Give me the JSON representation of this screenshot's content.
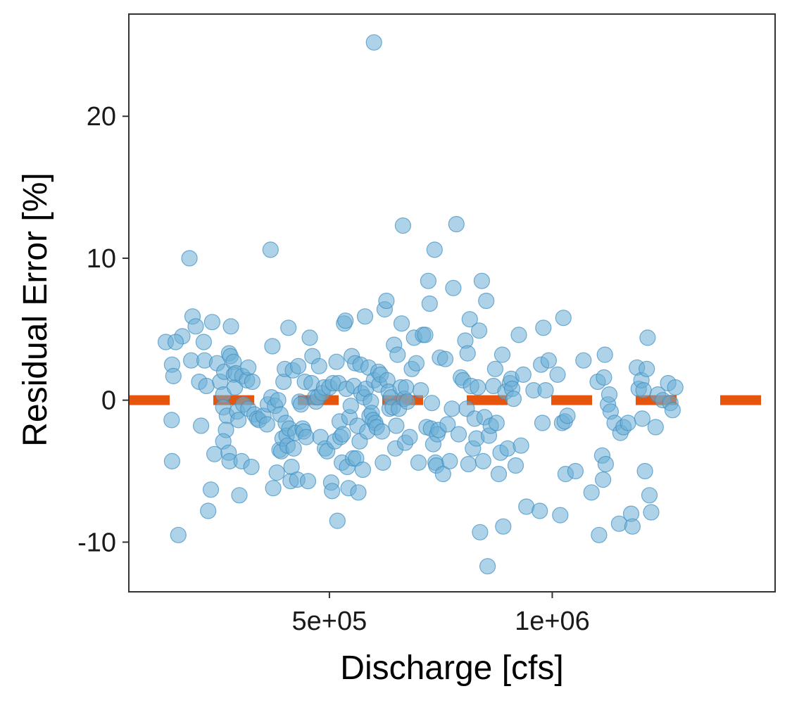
{
  "chart_data": {
    "type": "scatter",
    "xlabel": "Discharge [cfs]",
    "ylabel": "Residual Error [%]",
    "xlim": [
      50000,
      1500000
    ],
    "ylim": [
      -13.5,
      27.2
    ],
    "grid": false,
    "legend": "none",
    "x_ticks": [
      {
        "value": 500000,
        "label": "5e+05"
      },
      {
        "value": 1000000,
        "label": "1e+06"
      }
    ],
    "y_ticks": [
      {
        "value": -10,
        "label": "-10"
      },
      {
        "value": 0,
        "label": "0"
      },
      {
        "value": 10,
        "label": "10"
      },
      {
        "value": 20,
        "label": "20"
      }
    ],
    "reference_line": {
      "y": 0,
      "style": "dashed",
      "color": "#e6550d"
    },
    "point_color": "#6baed6",
    "points": [
      [
        600000,
        25.2
      ],
      [
        133000,
        4.1
      ],
      [
        147000,
        2.5
      ],
      [
        150000,
        1.7
      ],
      [
        146000,
        -1.4
      ],
      [
        147000,
        -4.3
      ],
      [
        170000,
        4.5
      ],
      [
        161000,
        -9.5
      ],
      [
        155000,
        4.1
      ],
      [
        186000,
        10.0
      ],
      [
        190000,
        2.8
      ],
      [
        193000,
        5.9
      ],
      [
        200000,
        5.2
      ],
      [
        208000,
        1.3
      ],
      [
        212000,
        -1.8
      ],
      [
        218000,
        4.1
      ],
      [
        220000,
        2.8
      ],
      [
        224000,
        1.0
      ],
      [
        234000,
        -6.3
      ],
      [
        228000,
        -7.8
      ],
      [
        237000,
        5.5
      ],
      [
        242000,
        -3.8
      ],
      [
        248000,
        2.6
      ],
      [
        255000,
        1.3
      ],
      [
        264000,
        2.0
      ],
      [
        262000,
        0.4
      ],
      [
        262000,
        -0.5
      ],
      [
        270000,
        -1.1
      ],
      [
        268000,
        -2.1
      ],
      [
        262000,
        -2.9
      ],
      [
        274000,
        -3.7
      ],
      [
        276000,
        -4.3
      ],
      [
        275000,
        3.3
      ],
      [
        278000,
        3.1
      ],
      [
        279000,
        5.2
      ],
      [
        285000,
        2.7
      ],
      [
        286000,
        1.8
      ],
      [
        288000,
        0.9
      ],
      [
        290000,
        1.9
      ],
      [
        293000,
        -0.8
      ],
      [
        296000,
        -1.4
      ],
      [
        298000,
        -6.7
      ],
      [
        303000,
        -4.3
      ],
      [
        305000,
        1.7
      ],
      [
        307000,
        -0.3
      ],
      [
        315000,
        1.4
      ],
      [
        318000,
        2.3
      ],
      [
        318000,
        -0.6
      ],
      [
        325000,
        -4.7
      ],
      [
        327000,
        1.3
      ],
      [
        332000,
        -1.0
      ],
      [
        338000,
        -1.3
      ],
      [
        342000,
        -1.4
      ],
      [
        352000,
        -1.1
      ],
      [
        360000,
        -1.7
      ],
      [
        362000,
        -0.3
      ],
      [
        368000,
        10.6
      ],
      [
        370000,
        0.2
      ],
      [
        372000,
        3.8
      ],
      [
        374000,
        -6.2
      ],
      [
        378000,
        -0.4
      ],
      [
        382000,
        -5.1
      ],
      [
        385000,
        0.0
      ],
      [
        388000,
        -3.5
      ],
      [
        390000,
        -1.0
      ],
      [
        392000,
        -3.6
      ],
      [
        395000,
        -2.7
      ],
      [
        397000,
        1.3
      ],
      [
        400000,
        2.2
      ],
      [
        402000,
        -1.6
      ],
      [
        404000,
        -2.5
      ],
      [
        406000,
        -3.2
      ],
      [
        408000,
        5.1
      ],
      [
        410000,
        -2.0
      ],
      [
        413000,
        -5.7
      ],
      [
        415000,
        -4.7
      ],
      [
        418000,
        2.1
      ],
      [
        420000,
        -3.4
      ],
      [
        424000,
        -2.3
      ],
      [
        428000,
        -5.6
      ],
      [
        430000,
        2.4
      ],
      [
        433000,
        -0.1
      ],
      [
        436000,
        -0.3
      ],
      [
        440000,
        -2.0
      ],
      [
        442000,
        -2.2
      ],
      [
        445000,
        1.3
      ],
      [
        448000,
        -2.6
      ],
      [
        452000,
        -5.7
      ],
      [
        456000,
        4.4
      ],
      [
        460000,
        1.2
      ],
      [
        462000,
        3.1
      ],
      [
        468000,
        0.2
      ],
      [
        470000,
        -0.1
      ],
      [
        474000,
        0.2
      ],
      [
        477000,
        2.4
      ],
      [
        480000,
        -2.6
      ],
      [
        484000,
        0.5
      ],
      [
        488000,
        0.9
      ],
      [
        490000,
        -3.4
      ],
      [
        495000,
        -3.6
      ],
      [
        500000,
        0.9
      ],
      [
        504000,
        -5.8
      ],
      [
        506000,
        -6.4
      ],
      [
        508000,
        1.2
      ],
      [
        512000,
        -2.9
      ],
      [
        516000,
        2.7
      ],
      [
        518000,
        -8.5
      ],
      [
        520000,
        1.2
      ],
      [
        523000,
        -1.5
      ],
      [
        525000,
        -2.6
      ],
      [
        528000,
        -4.4
      ],
      [
        530000,
        -2.4
      ],
      [
        533000,
        5.4
      ],
      [
        536000,
        5.6
      ],
      [
        538000,
        0.8
      ],
      [
        540000,
        -4.7
      ],
      [
        543000,
        -6.2
      ],
      [
        545000,
        -1.2
      ],
      [
        548000,
        -0.4
      ],
      [
        550000,
        3.1
      ],
      [
        553000,
        -4.1
      ],
      [
        555000,
        1.0
      ],
      [
        558000,
        2.6
      ],
      [
        560000,
        -4.1
      ],
      [
        563000,
        -1.8
      ],
      [
        565000,
        -6.5
      ],
      [
        568000,
        -2.9
      ],
      [
        570000,
        2.5
      ],
      [
        572000,
        0.5
      ],
      [
        575000,
        -4.9
      ],
      [
        578000,
        0.2
      ],
      [
        580000,
        5.9
      ],
      [
        582000,
        0.8
      ],
      [
        585000,
        -2.2
      ],
      [
        588000,
        2.3
      ],
      [
        590000,
        -1.1
      ],
      [
        593000,
        -0.1
      ],
      [
        595000,
        -0.9
      ],
      [
        598000,
        -1.4
      ],
      [
        600000,
        1.4
      ],
      [
        603000,
        -1.6
      ],
      [
        606000,
        -1.9
      ],
      [
        610000,
        2.0
      ],
      [
        612000,
        1.1
      ],
      [
        615000,
        1.8
      ],
      [
        618000,
        -2.2
      ],
      [
        620000,
        -4.4
      ],
      [
        624000,
        6.4
      ],
      [
        628000,
        7.0
      ],
      [
        630000,
        1.4
      ],
      [
        633000,
        0.6
      ],
      [
        635000,
        -0.6
      ],
      [
        638000,
        0.2
      ],
      [
        642000,
        -0.5
      ],
      [
        645000,
        3.9
      ],
      [
        648000,
        -3.4
      ],
      [
        650000,
        -1.8
      ],
      [
        653000,
        3.2
      ],
      [
        656000,
        -0.6
      ],
      [
        660000,
        0.9
      ],
      [
        662000,
        5.4
      ],
      [
        665000,
        12.3
      ],
      [
        668000,
        0.1
      ],
      [
        670000,
        -3.0
      ],
      [
        672000,
        0.9
      ],
      [
        675000,
        -0.1
      ],
      [
        680000,
        -2.6
      ],
      [
        685000,
        2.2
      ],
      [
        690000,
        4.4
      ],
      [
        695000,
        2.6
      ],
      [
        700000,
        -4.4
      ],
      [
        705000,
        0.7
      ],
      [
        710000,
        4.6
      ],
      [
        715000,
        4.6
      ],
      [
        718000,
        -1.9
      ],
      [
        722000,
        8.4
      ],
      [
        725000,
        6.8
      ],
      [
        728000,
        -2.0
      ],
      [
        730000,
        -0.2
      ],
      [
        733000,
        -3.1
      ],
      [
        736000,
        10.6
      ],
      [
        738000,
        -4.4
      ],
      [
        740000,
        -4.6
      ],
      [
        742000,
        -2.4
      ],
      [
        745000,
        -2.1
      ],
      [
        748000,
        3.0
      ],
      [
        755000,
        -5.2
      ],
      [
        760000,
        2.9
      ],
      [
        765000,
        -1.7
      ],
      [
        770000,
        -4.3
      ],
      [
        775000,
        -0.6
      ],
      [
        778000,
        7.9
      ],
      [
        785000,
        12.4
      ],
      [
        790000,
        -2.4
      ],
      [
        795000,
        1.6
      ],
      [
        800000,
        1.4
      ],
      [
        805000,
        4.2
      ],
      [
        808000,
        -0.6
      ],
      [
        810000,
        3.3
      ],
      [
        812000,
        -4.5
      ],
      [
        815000,
        5.7
      ],
      [
        818000,
        1.0
      ],
      [
        822000,
        -3.4
      ],
      [
        826000,
        -1.3
      ],
      [
        830000,
        -2.7
      ],
      [
        833000,
        0.9
      ],
      [
        836000,
        4.9
      ],
      [
        838000,
        -9.3
      ],
      [
        842000,
        8.4
      ],
      [
        845000,
        -4.3
      ],
      [
        848000,
        -1.2
      ],
      [
        852000,
        7.0
      ],
      [
        855000,
        -11.7
      ],
      [
        858000,
        -2.5
      ],
      [
        862000,
        -1.8
      ],
      [
        868000,
        1.0
      ],
      [
        872000,
        2.2
      ],
      [
        875000,
        -1.6
      ],
      [
        880000,
        -5.2
      ],
      [
        884000,
        -3.7
      ],
      [
        888000,
        3.2
      ],
      [
        890000,
        -8.9
      ],
      [
        895000,
        0.6
      ],
      [
        900000,
        -3.4
      ],
      [
        905000,
        1.2
      ],
      [
        908000,
        1.5
      ],
      [
        910000,
        0.8
      ],
      [
        913000,
        0.1
      ],
      [
        918000,
        -4.6
      ],
      [
        925000,
        4.6
      ],
      [
        930000,
        -3.2
      ],
      [
        935000,
        1.8
      ],
      [
        942000,
        -7.5
      ],
      [
        958000,
        0.7
      ],
      [
        972000,
        -7.8
      ],
      [
        975000,
        2.5
      ],
      [
        978000,
        -1.6
      ],
      [
        980000,
        5.1
      ],
      [
        985000,
        0.7
      ],
      [
        992000,
        2.8
      ],
      [
        1012000,
        1.8
      ],
      [
        1018000,
        -8.1
      ],
      [
        1022000,
        -1.6
      ],
      [
        1025000,
        5.8
      ],
      [
        1028000,
        -1.5
      ],
      [
        1030000,
        -5.2
      ],
      [
        1034000,
        -1.1
      ],
      [
        1052000,
        -5.0
      ],
      [
        1070000,
        2.8
      ],
      [
        1088000,
        -6.5
      ],
      [
        1102000,
        1.3
      ],
      [
        1105000,
        -9.5
      ],
      [
        1112000,
        -3.9
      ],
      [
        1114000,
        -5.6
      ],
      [
        1116000,
        1.6
      ],
      [
        1118000,
        3.2
      ],
      [
        1120000,
        -4.5
      ],
      [
        1125000,
        -0.3
      ],
      [
        1128000,
        0.4
      ],
      [
        1131000,
        -0.8
      ],
      [
        1140000,
        -1.6
      ],
      [
        1150000,
        -8.7
      ],
      [
        1153000,
        -2.3
      ],
      [
        1160000,
        -1.9
      ],
      [
        1170000,
        -1.6
      ],
      [
        1177000,
        -8.0
      ],
      [
        1180000,
        -8.9
      ],
      [
        1190000,
        2.3
      ],
      [
        1194000,
        0.8
      ],
      [
        1200000,
        1.4
      ],
      [
        1202000,
        -1.3
      ],
      [
        1205000,
        0.7
      ],
      [
        1208000,
        -5.0
      ],
      [
        1212000,
        2.2
      ],
      [
        1214000,
        4.4
      ],
      [
        1218000,
        -6.7
      ],
      [
        1222000,
        -7.9
      ],
      [
        1232000,
        -1.9
      ],
      [
        1237000,
        0.4
      ],
      [
        1248000,
        0.0
      ],
      [
        1260000,
        1.2
      ],
      [
        1265000,
        -0.2
      ],
      [
        1270000,
        -0.7
      ],
      [
        1276000,
        0.9
      ]
    ]
  }
}
